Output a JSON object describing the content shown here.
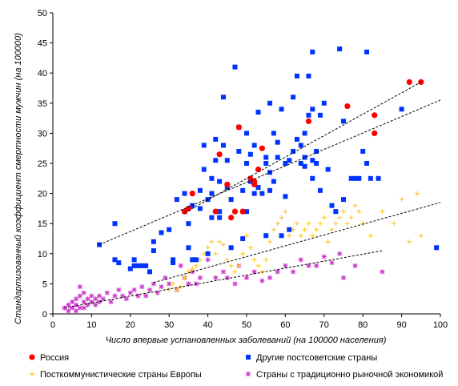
{
  "chart_data": {
    "type": "scatter",
    "title": "",
    "xlabel": "Число впервые установленных заболеваний (на 100000 населения)",
    "ylabel": "Стандартизованный коэффициент смертности мужчин (на 100000)",
    "xlim": [
      0,
      100
    ],
    "ylim": [
      0,
      50
    ],
    "xticks": [
      0,
      10,
      20,
      30,
      40,
      50,
      60,
      70,
      80,
      90,
      100
    ],
    "yticks": [
      0,
      5,
      10,
      15,
      20,
      25,
      30,
      35,
      40,
      45,
      50
    ],
    "grid": false,
    "legend_position": "bottom",
    "series": [
      {
        "name": "Россия",
        "marker": "diamond",
        "color": "#ff0000",
        "points": [
          [
            34,
            17
          ],
          [
            35,
            17.5
          ],
          [
            36,
            20
          ],
          [
            42,
            17
          ],
          [
            43,
            26.5
          ],
          [
            45,
            21.5
          ],
          [
            46,
            16
          ],
          [
            47,
            17
          ],
          [
            48,
            31
          ],
          [
            49,
            17
          ],
          [
            51,
            22.5
          ],
          [
            52,
            21.5
          ],
          [
            52,
            22
          ],
          [
            53,
            24
          ],
          [
            54,
            27.5
          ],
          [
            66,
            32
          ],
          [
            76,
            34.5
          ],
          [
            83,
            33
          ],
          [
            83,
            30
          ],
          [
            92,
            38.5
          ],
          [
            95,
            38.5
          ]
        ]
      },
      {
        "name": "Другие постсоветские страны",
        "marker": "square",
        "color": "#0033ff",
        "points": [
          [
            12,
            11.5
          ],
          [
            16,
            15
          ],
          [
            16,
            9
          ],
          [
            17,
            8.5
          ],
          [
            20,
            7.5
          ],
          [
            21,
            9
          ],
          [
            21,
            8
          ],
          [
            22,
            8
          ],
          [
            23,
            8
          ],
          [
            24,
            8
          ],
          [
            25,
            7
          ],
          [
            26,
            12
          ],
          [
            26,
            10.5
          ],
          [
            28,
            13.5
          ],
          [
            30,
            14
          ],
          [
            31,
            9
          ],
          [
            31,
            8.5
          ],
          [
            32,
            19
          ],
          [
            34,
            17
          ],
          [
            34,
            20
          ],
          [
            35,
            15
          ],
          [
            35,
            11
          ],
          [
            36,
            18
          ],
          [
            36,
            9
          ],
          [
            37,
            9
          ],
          [
            38,
            20.5
          ],
          [
            38,
            17.5
          ],
          [
            39,
            24
          ],
          [
            39,
            28
          ],
          [
            40,
            10
          ],
          [
            40,
            19
          ],
          [
            41,
            22.5
          ],
          [
            41,
            20
          ],
          [
            41,
            16
          ],
          [
            42,
            25.5
          ],
          [
            42,
            29
          ],
          [
            43,
            16
          ],
          [
            43,
            17
          ],
          [
            43,
            22
          ],
          [
            44,
            28
          ],
          [
            44,
            36
          ],
          [
            45,
            25.5
          ],
          [
            45,
            21
          ],
          [
            46,
            19
          ],
          [
            46,
            11
          ],
          [
            47,
            41
          ],
          [
            48,
            27
          ],
          [
            48,
            31
          ],
          [
            49,
            20.5
          ],
          [
            49,
            12.5
          ],
          [
            50,
            25
          ],
          [
            50,
            17
          ],
          [
            50,
            30
          ],
          [
            51,
            26.5
          ],
          [
            51,
            22
          ],
          [
            52,
            28
          ],
          [
            52,
            20
          ],
          [
            53,
            33.5
          ],
          [
            53,
            21
          ],
          [
            54,
            20
          ],
          [
            55,
            26
          ],
          [
            55,
            25
          ],
          [
            55,
            13
          ],
          [
            56,
            35
          ],
          [
            56,
            23.5
          ],
          [
            56,
            20.5
          ],
          [
            57,
            30
          ],
          [
            57,
            22
          ],
          [
            58,
            28.5
          ],
          [
            58,
            26
          ],
          [
            59,
            34
          ],
          [
            59,
            13
          ],
          [
            60,
            19.5
          ],
          [
            60,
            25
          ],
          [
            61,
            25.5
          ],
          [
            61,
            14
          ],
          [
            62,
            36
          ],
          [
            62,
            27
          ],
          [
            63,
            39.5
          ],
          [
            63,
            29
          ],
          [
            64,
            28
          ],
          [
            64,
            25
          ],
          [
            65,
            30
          ],
          [
            65,
            26
          ],
          [
            65,
            24.5
          ],
          [
            66,
            33
          ],
          [
            66,
            39.5
          ],
          [
            67,
            43.5
          ],
          [
            67,
            34
          ],
          [
            67,
            25.5
          ],
          [
            67,
            22.5
          ],
          [
            68,
            27
          ],
          [
            68,
            25
          ],
          [
            69,
            33
          ],
          [
            69,
            20.5
          ],
          [
            70,
            35
          ],
          [
            71,
            24
          ],
          [
            72,
            18
          ],
          [
            73,
            17
          ],
          [
            74,
            44
          ],
          [
            75,
            32
          ],
          [
            75,
            19
          ],
          [
            77,
            22.5
          ],
          [
            78,
            22.5
          ],
          [
            79,
            22.5
          ],
          [
            80,
            27
          ],
          [
            81,
            43.5
          ],
          [
            81,
            25
          ],
          [
            82,
            22.5
          ],
          [
            84,
            22.5
          ],
          [
            90,
            34
          ],
          [
            99,
            11
          ]
        ]
      },
      {
        "name": "Посткоммунистические страны Европы",
        "marker": "plus",
        "color": "#ffcc33",
        "points": [
          [
            30,
            4
          ],
          [
            31,
            5
          ],
          [
            32,
            4
          ],
          [
            33,
            4.5
          ],
          [
            34,
            6
          ],
          [
            35,
            7
          ],
          [
            36,
            7.5
          ],
          [
            37,
            8
          ],
          [
            38,
            9
          ],
          [
            39,
            10
          ],
          [
            40,
            11
          ],
          [
            41,
            12
          ],
          [
            42,
            10
          ],
          [
            43,
            12
          ],
          [
            44,
            11.5
          ],
          [
            45,
            9
          ],
          [
            46,
            8
          ],
          [
            47,
            7
          ],
          [
            48,
            8
          ],
          [
            49,
            10
          ],
          [
            50,
            13
          ],
          [
            51,
            11
          ],
          [
            52,
            9
          ],
          [
            53,
            8
          ],
          [
            54,
            7
          ],
          [
            55,
            9
          ],
          [
            56,
            12
          ],
          [
            57,
            14
          ],
          [
            58,
            15
          ],
          [
            59,
            16
          ],
          [
            60,
            17
          ],
          [
            61,
            13
          ],
          [
            62,
            14
          ],
          [
            63,
            15
          ],
          [
            64,
            13
          ],
          [
            65,
            14
          ],
          [
            66,
            15
          ],
          [
            67,
            13
          ],
          [
            68,
            14
          ],
          [
            69,
            15
          ],
          [
            70,
            16
          ],
          [
            71,
            12
          ],
          [
            72,
            14
          ],
          [
            73,
            15
          ],
          [
            74,
            16
          ],
          [
            75,
            17
          ],
          [
            76,
            15
          ],
          [
            77,
            16
          ],
          [
            78,
            18
          ],
          [
            79,
            17
          ],
          [
            80,
            15
          ],
          [
            82,
            13
          ],
          [
            85,
            17
          ],
          [
            88,
            15
          ],
          [
            90,
            19
          ],
          [
            92,
            12
          ],
          [
            94,
            20
          ],
          [
            95,
            13
          ]
        ]
      },
      {
        "name": "Страны с традиционно рыночной экономикой",
        "marker": "star",
        "color": "#cc33cc",
        "points": [
          [
            3,
            1
          ],
          [
            4,
            0.5
          ],
          [
            4,
            1.5
          ],
          [
            5,
            2
          ],
          [
            5,
            1
          ],
          [
            6,
            2.5
          ],
          [
            6,
            1.5
          ],
          [
            6,
            0.5
          ],
          [
            7,
            4.5
          ],
          [
            7,
            3
          ],
          [
            7,
            1
          ],
          [
            8,
            2
          ],
          [
            8,
            3.5
          ],
          [
            8,
            1
          ],
          [
            9,
            2.5
          ],
          [
            9,
            1.5
          ],
          [
            10,
            2
          ],
          [
            10,
            3
          ],
          [
            11,
            1.5
          ],
          [
            11,
            2.5
          ],
          [
            12,
            2
          ],
          [
            12,
            3
          ],
          [
            13,
            2.5
          ],
          [
            14,
            3.5
          ],
          [
            15,
            2
          ],
          [
            16,
            3
          ],
          [
            17,
            4
          ],
          [
            18,
            3
          ],
          [
            19,
            2.5
          ],
          [
            20,
            3.5
          ],
          [
            21,
            4
          ],
          [
            22,
            3
          ],
          [
            23,
            4.5
          ],
          [
            24,
            3
          ],
          [
            25,
            4
          ],
          [
            26,
            5
          ],
          [
            27,
            3.5
          ],
          [
            28,
            4.5
          ],
          [
            29,
            6
          ],
          [
            30,
            5
          ],
          [
            32,
            4
          ],
          [
            33,
            8
          ],
          [
            34,
            6
          ],
          [
            35,
            5
          ],
          [
            36,
            7
          ],
          [
            37,
            5
          ],
          [
            38,
            6
          ],
          [
            40,
            9
          ],
          [
            42,
            6
          ],
          [
            44,
            7
          ],
          [
            45,
            6
          ],
          [
            47,
            5
          ],
          [
            48,
            8
          ],
          [
            50,
            6
          ],
          [
            52,
            7
          ],
          [
            54,
            5.5
          ],
          [
            56,
            6
          ],
          [
            58,
            7
          ],
          [
            60,
            8
          ],
          [
            62,
            7
          ],
          [
            64,
            9
          ],
          [
            66,
            8
          ],
          [
            68,
            8
          ],
          [
            70,
            9.5
          ],
          [
            72,
            8.5
          ],
          [
            74,
            10
          ],
          [
            75,
            6
          ],
          [
            78,
            8
          ],
          [
            85,
            7
          ]
        ]
      }
    ],
    "trendlines": [
      {
        "series": "Россия",
        "x": [
          34,
          95
        ],
        "y": [
          16.8,
          38.5
        ]
      },
      {
        "series": "Другие постсоветские страны",
        "x": [
          12,
          100
        ],
        "y": [
          11.5,
          35.5
        ]
      },
      {
        "series": "Посткоммунистические страны Европы",
        "x": [
          26,
          100
        ],
        "y": [
          5.2,
          18.5
        ]
      },
      {
        "series": "Страны с традиционно рыночной экономикой",
        "x": [
          3,
          85
        ],
        "y": [
          1.0,
          10.5
        ]
      }
    ]
  }
}
